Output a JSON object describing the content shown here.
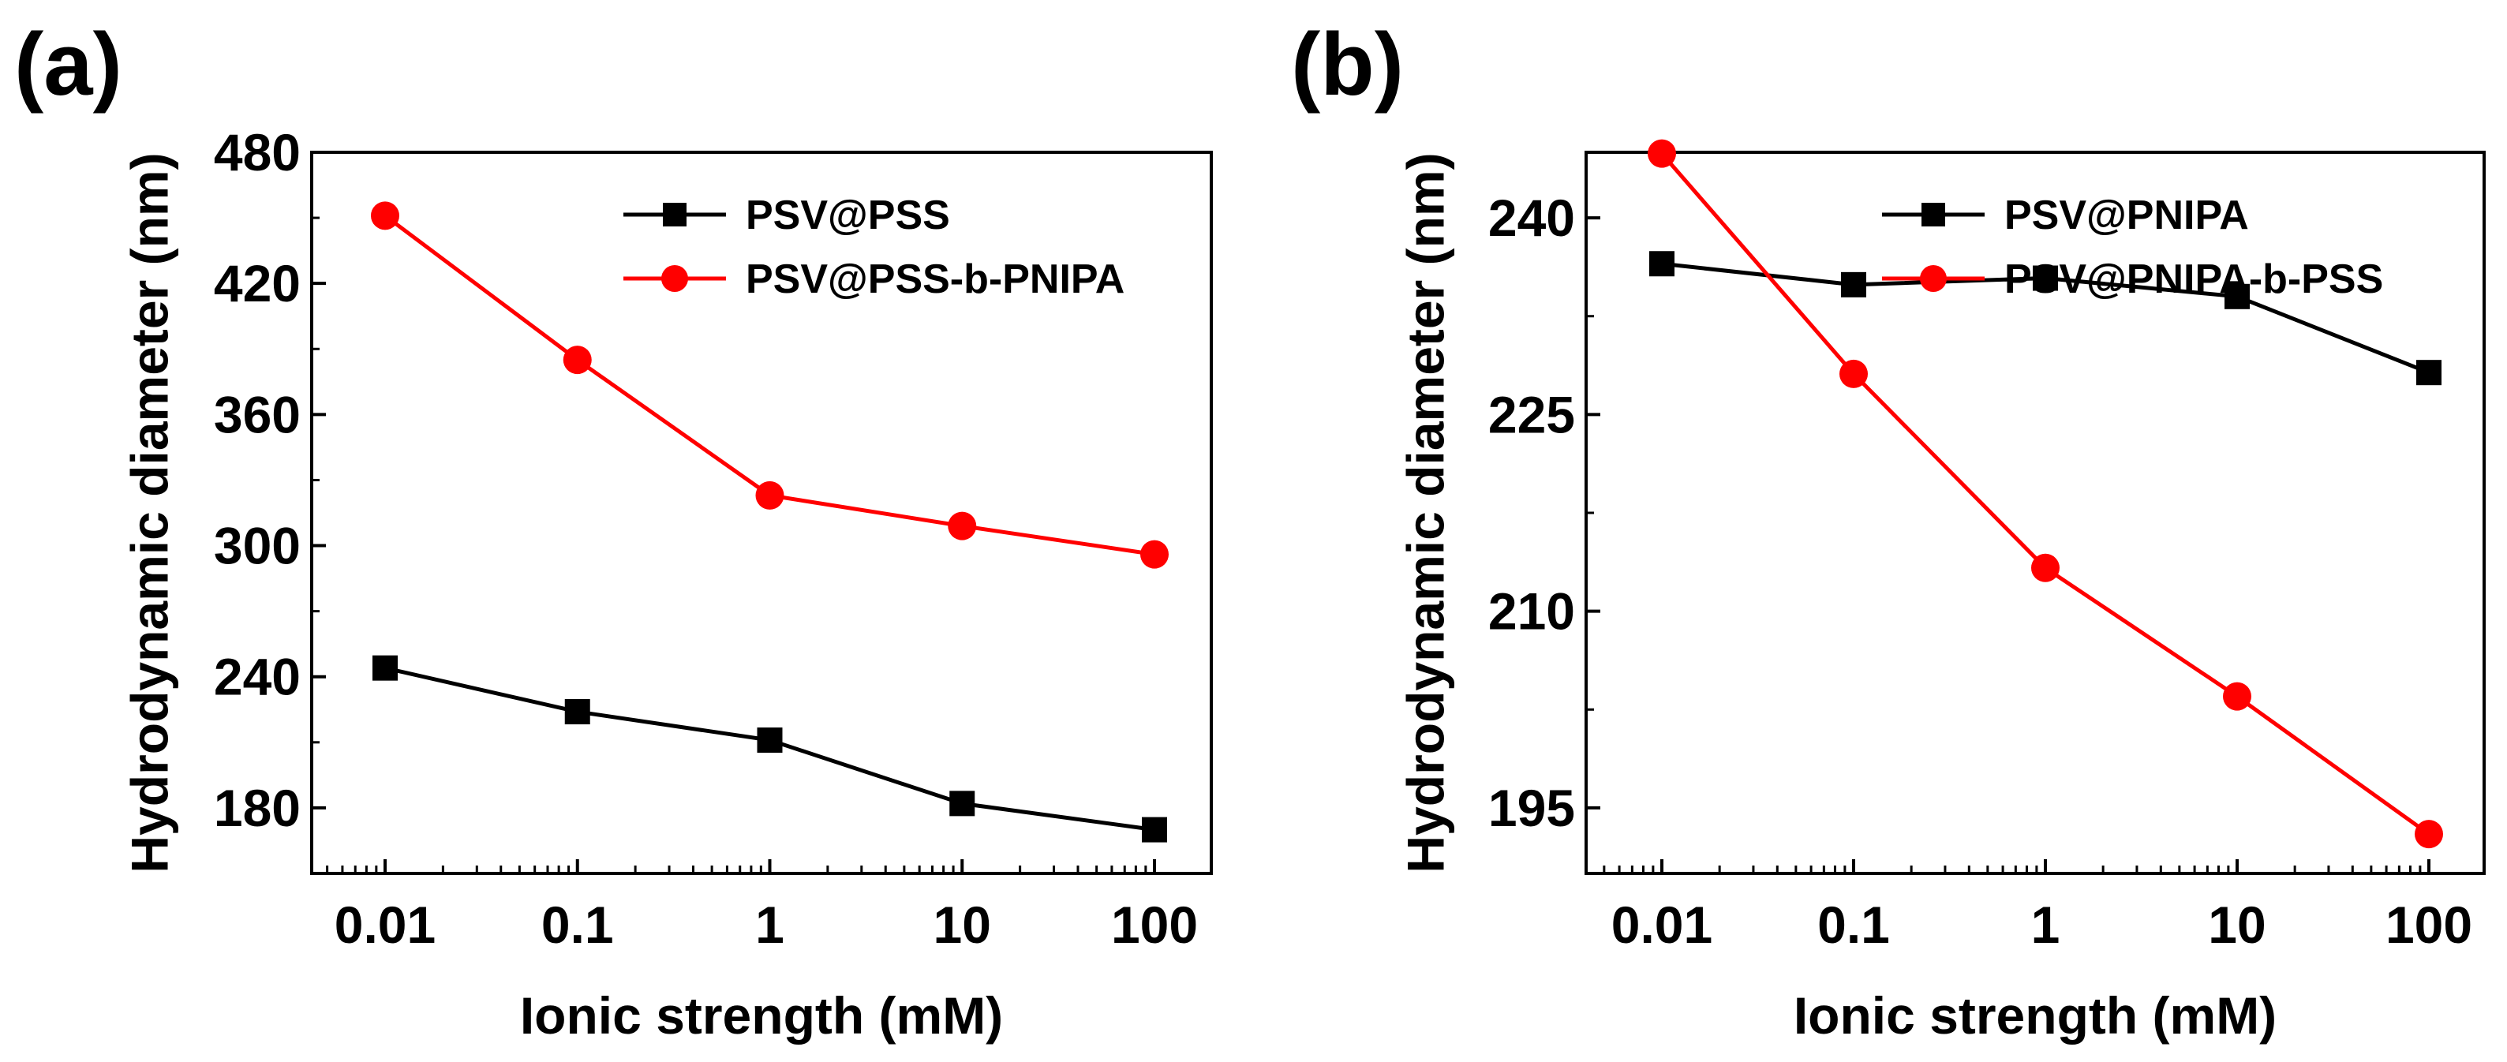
{
  "chart_data": [
    {
      "type": "line",
      "panel_label": "(a)",
      "xscale": "log",
      "x": [
        0.01,
        0.1,
        1,
        10,
        100
      ],
      "x_tick_labels": [
        "0.01",
        "0.1",
        "1",
        "10",
        "100"
      ],
      "xlabel": "Ionic strength (mM)",
      "ylabel": "Hydrodynamic diameter (nm)",
      "ylim": [
        150,
        480
      ],
      "y_ticks": [
        180,
        240,
        300,
        360,
        420,
        480
      ],
      "legend_position": "top-right",
      "series": [
        {
          "name": "PSV@PSS",
          "color": "#000000",
          "marker": "square",
          "values": [
            244,
            224,
            211,
            182,
            170
          ]
        },
        {
          "name": "PSV@PSS-b-PNIPA",
          "color": "#ff0000",
          "marker": "circle",
          "values": [
            451,
            385,
            323,
            309,
            296
          ]
        }
      ]
    },
    {
      "type": "line",
      "panel_label": "(b)",
      "xscale": "log",
      "x": [
        0.01,
        0.1,
        1,
        10,
        100
      ],
      "x_tick_labels": [
        "0.01",
        "0.1",
        "1",
        "10",
        "100"
      ],
      "xlabel": "Ionic strength (mM)",
      "ylabel": "Hydrodynamic diameter (nm)",
      "ylim": [
        190,
        245
      ],
      "y_ticks": [
        195,
        210,
        225,
        240
      ],
      "legend_position": "top-right",
      "series": [
        {
          "name": "PSV@PNIPA",
          "color": "#000000",
          "marker": "square",
          "values": [
            236.5,
            234.9,
            235.4,
            234.0,
            228.2
          ]
        },
        {
          "name": "PSV@PNIPA-b-PSS",
          "color": "#ff0000",
          "marker": "circle",
          "values": [
            244.9,
            228.1,
            213.3,
            203.5,
            193.0
          ]
        }
      ]
    }
  ]
}
